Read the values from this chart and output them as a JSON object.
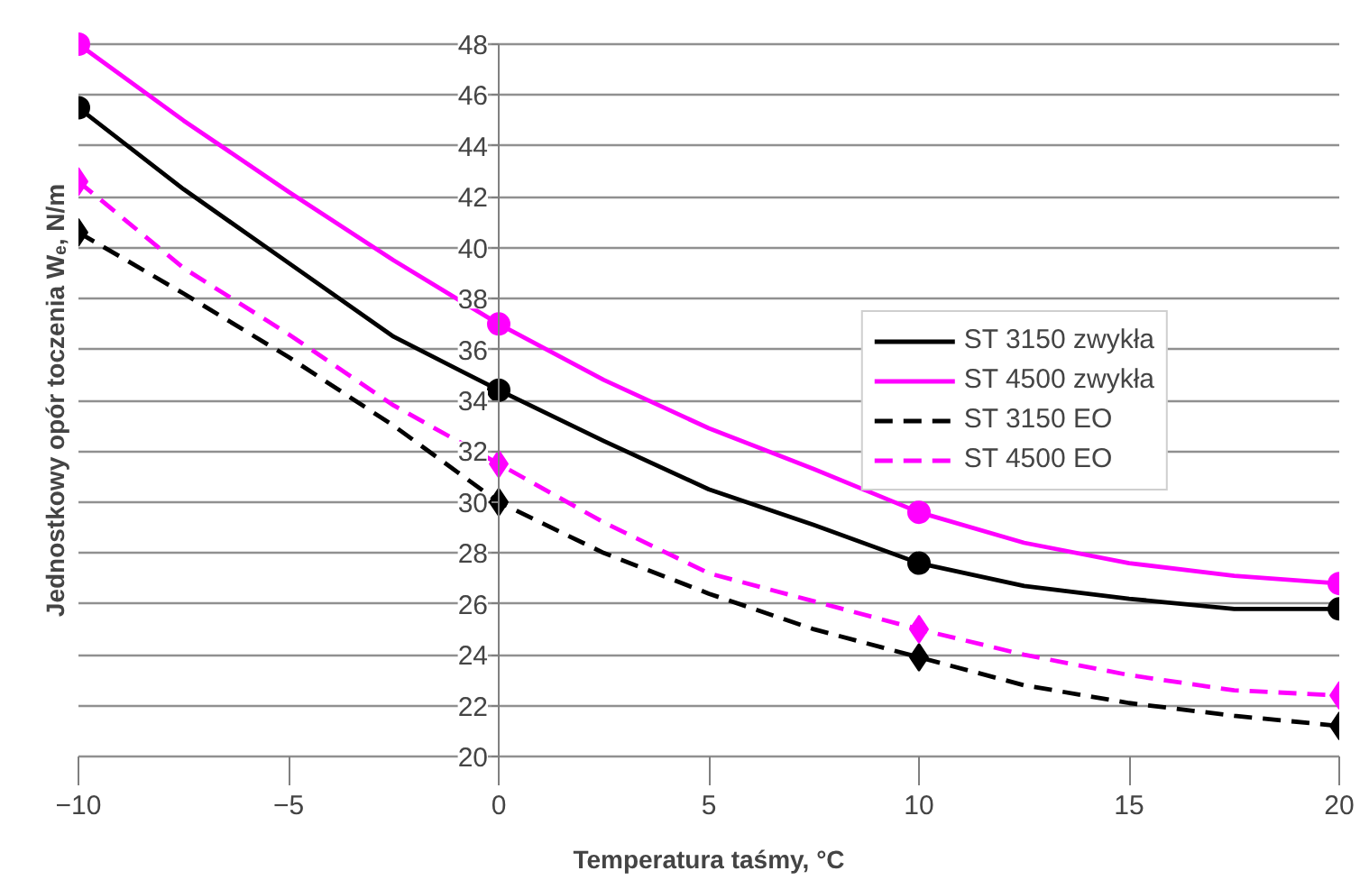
{
  "chart_data": {
    "type": "line",
    "xlabel": "Temperatura taśmy, °C",
    "ylabel": "Jednostkowy opór toczenia Wₑ, N/m",
    "x": [
      -10,
      0,
      10,
      20
    ],
    "series": [
      {
        "name": "ST 3150 zwykła",
        "color": "#000000",
        "line_style": "solid",
        "marker": "none",
        "x": [
          -10,
          -7.5,
          -5,
          -2.5,
          0,
          2.5,
          5,
          7.5,
          10,
          12.5,
          15,
          17.5,
          20
        ],
        "values": [
          45.5,
          42.3,
          39.4,
          36.5,
          34.4,
          32.4,
          30.5,
          29.1,
          27.6,
          26.7,
          26.2,
          25.8,
          25.8
        ]
      },
      {
        "name": "ST 4500 zwykła",
        "color": "#ff00ff",
        "line_style": "solid",
        "marker": "none",
        "x": [
          -10,
          -7.5,
          -5,
          -2.5,
          0,
          2.5,
          5,
          7.5,
          10,
          12.5,
          15,
          17.5,
          20
        ],
        "values": [
          48.0,
          45.0,
          42.2,
          39.5,
          37.0,
          34.8,
          32.9,
          31.3,
          29.6,
          28.4,
          27.6,
          27.1,
          26.8
        ]
      },
      {
        "name": "ST 3150 EO",
        "color": "#000000",
        "line_style": "dashed",
        "marker": "none",
        "x": [
          -10,
          -7.5,
          -5,
          -2.5,
          0,
          2.5,
          5,
          7.5,
          10,
          12.5,
          15,
          17.5,
          20
        ],
        "values": [
          40.6,
          38.2,
          35.7,
          33.0,
          30.0,
          28.0,
          26.4,
          25.0,
          23.9,
          22.8,
          22.1,
          21.6,
          21.2
        ]
      },
      {
        "name": "ST 4500 EO",
        "color": "#ff00ff",
        "line_style": "dashed",
        "marker": "none",
        "x": [
          -10,
          -7.5,
          -5,
          -2.5,
          0,
          2.5,
          5,
          7.5,
          10,
          12.5,
          15,
          17.5,
          20
        ],
        "values": [
          42.6,
          39.2,
          36.6,
          33.8,
          31.5,
          29.2,
          27.2,
          26.1,
          25.0,
          24.0,
          23.2,
          22.6,
          22.4
        ]
      },
      {
        "type": "scatter",
        "color": "#000000",
        "marker": "circle",
        "values": [
          45.5,
          34.4,
          27.6,
          25.8
        ]
      },
      {
        "type": "scatter",
        "color": "#ff00ff",
        "marker": "circle",
        "values": [
          48.0,
          37.0,
          29.6,
          26.8
        ]
      },
      {
        "type": "scatter",
        "color": "#000000",
        "marker": "diamond",
        "values": [
          40.6,
          30.0,
          23.9,
          21.2
        ]
      },
      {
        "type": "scatter",
        "color": "#ff00ff",
        "marker": "diamond",
        "values": [
          42.6,
          31.5,
          25.0,
          22.4
        ]
      }
    ],
    "xlim": [
      -10,
      20
    ],
    "xticks": [
      -10,
      -5,
      0,
      5,
      10,
      15,
      20
    ],
    "ylim": [
      20,
      48
    ],
    "yticks": [
      20,
      22,
      24,
      26,
      28,
      30,
      32,
      34,
      36,
      38,
      40,
      42,
      44,
      46,
      48
    ],
    "grid": "y",
    "legend": "right"
  }
}
